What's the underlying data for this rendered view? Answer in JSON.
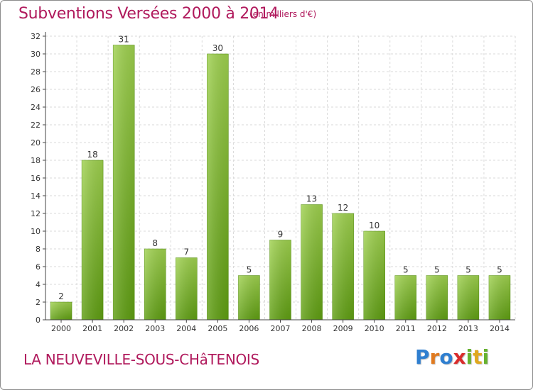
{
  "header": {
    "title": "Subventions Versées 2000 à 2014",
    "unit": "(en milliers d'€)"
  },
  "footer": {
    "city": "LA NEUVEVILLE-SOUS-CHâTENOIS",
    "brand": [
      "P",
      "r",
      "o",
      "x",
      "i",
      "t",
      "i"
    ]
  },
  "colors": {
    "accent": "#b0195c",
    "bar_top": "#9fd14f",
    "bar_bottom": "#5f9e12",
    "grid": "#d9d9d9",
    "axis": "#444444"
  },
  "chart_data": {
    "type": "bar",
    "title": "Subventions Versées 2000 à 2014",
    "subtitle": "(en milliers d'€)",
    "xlabel": "",
    "ylabel": "",
    "categories": [
      "2000",
      "2001",
      "2002",
      "2003",
      "2004",
      "2005",
      "2006",
      "2007",
      "2008",
      "2009",
      "2010",
      "2011",
      "2012",
      "2013",
      "2014"
    ],
    "values": [
      2,
      18,
      31,
      8,
      7,
      30,
      5,
      9,
      13,
      12,
      10,
      5,
      5,
      5,
      5
    ],
    "ylim": [
      0,
      32
    ],
    "yticks": [
      0,
      2,
      4,
      6,
      8,
      10,
      12,
      14,
      16,
      18,
      20,
      22,
      24,
      26,
      28,
      30,
      32
    ],
    "grid": "horizontal dashed",
    "legend": "none"
  }
}
